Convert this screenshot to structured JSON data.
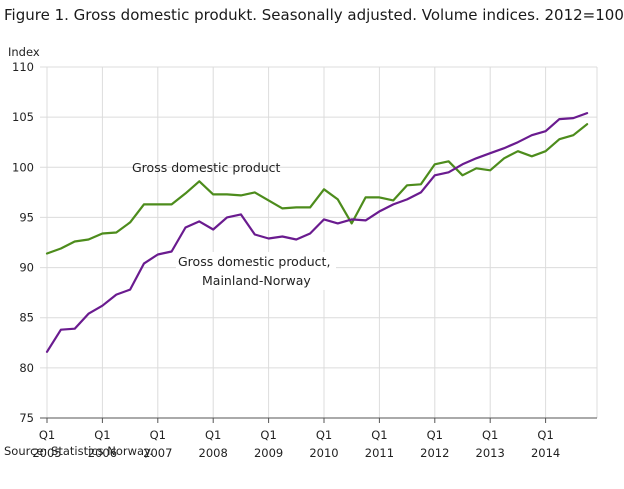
{
  "title": "Figure 1. Gross domestic produkt. Seasonally adjusted. Volume indices. 2012=100",
  "source": "Source: Statistics Norway.",
  "chart_data": {
    "type": "line",
    "ylabel": "Index",
    "ylim": [
      75,
      110
    ],
    "yticks": [
      "110",
      "105",
      "100",
      "95",
      "90",
      "85",
      "80",
      "75"
    ],
    "x_tick_labels": [
      {
        "quarter": "Q1",
        "year": "2005"
      },
      {
        "quarter": "Q1",
        "year": "2006"
      },
      {
        "quarter": "Q1",
        "year": "2007"
      },
      {
        "quarter": "Q1",
        "year": "2008"
      },
      {
        "quarter": "Q1",
        "year": "2009"
      },
      {
        "quarter": "Q1",
        "year": "2010"
      },
      {
        "quarter": "Q1",
        "year": "2011"
      },
      {
        "quarter": "Q1",
        "year": "2012"
      },
      {
        "quarter": "Q1",
        "year": "2013"
      },
      {
        "quarter": "Q1",
        "year": "2014"
      }
    ],
    "grid": true,
    "series": [
      {
        "name": "Gross domestic product",
        "color": "#4d8c1c",
        "values": [
          91.4,
          91.9,
          92.6,
          92.8,
          93.4,
          93.5,
          94.5,
          96.3,
          96.3,
          96.3,
          97.4,
          98.6,
          97.3,
          97.3,
          97.2,
          97.5,
          96.7,
          95.9,
          96.0,
          96.0,
          97.8,
          96.8,
          94.4,
          97.0,
          97.0,
          96.7,
          98.2,
          98.3,
          100.3,
          100.6,
          99.2,
          99.9,
          99.7,
          100.9,
          101.6,
          101.1,
          101.6,
          102.8,
          103.2,
          104.3
        ]
      },
      {
        "name": "Gross domestic product, Mainland-Norway",
        "color": "#6a1b8f",
        "values": [
          81.6,
          83.8,
          83.9,
          85.4,
          86.2,
          87.3,
          87.8,
          90.4,
          91.3,
          91.6,
          94.0,
          94.6,
          93.8,
          95.0,
          95.3,
          93.3,
          92.9,
          93.1,
          92.8,
          93.4,
          94.8,
          94.4,
          94.8,
          94.7,
          95.6,
          96.3,
          96.8,
          97.5,
          99.2,
          99.5,
          100.3,
          100.9,
          101.4,
          101.9,
          102.5,
          103.2,
          103.6,
          104.8,
          104.9,
          105.4
        ]
      }
    ]
  }
}
